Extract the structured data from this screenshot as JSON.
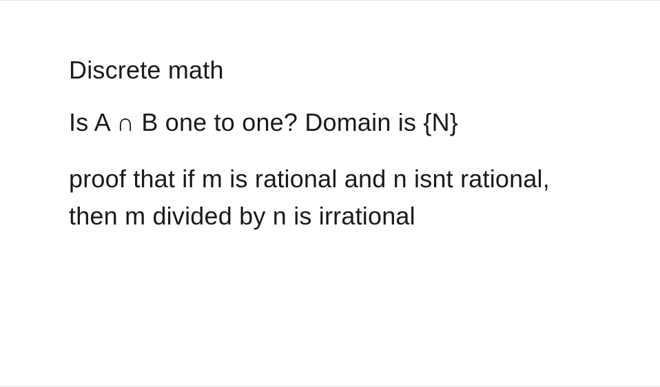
{
  "document": {
    "text_color": "#1a1a1a",
    "background_color": "#ffffff",
    "border_color": "#e5e5e5",
    "font_size_pt": 36,
    "font_weight": 400,
    "line1": "Discrete math",
    "line2": "Is A ∩ B one to one? Domain is {N}",
    "line3": "proof that if m is rational and n isnt rational, then m divided by n is irrational"
  }
}
